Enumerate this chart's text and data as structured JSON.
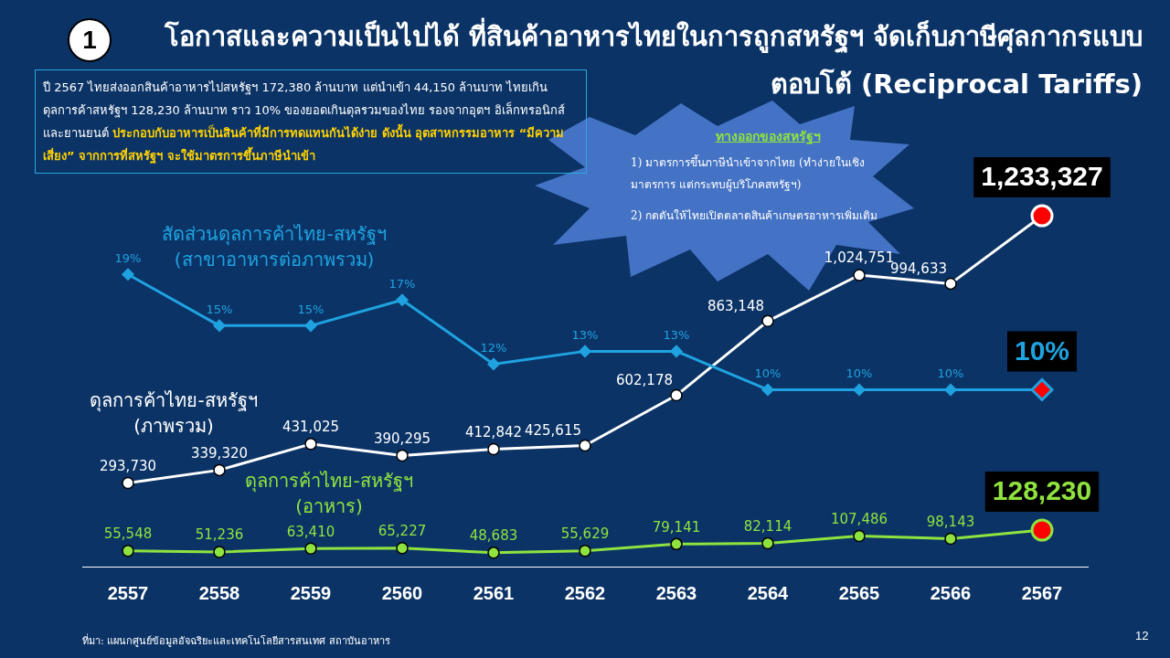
{
  "chart_data": {
    "type": "line",
    "title": "โอกาสและความเป็นไปได้ ที่สินค้าอาหารไทยในการถูกสหรัฐฯ จัดเก็บภาษีศุลกากรแบบตอบโต้ (Reciprocal Tariffs)",
    "categories": [
      "2557",
      "2558",
      "2559",
      "2560",
      "2561",
      "2562",
      "2563",
      "2564",
      "2565",
      "2566",
      "2567"
    ],
    "series": [
      {
        "name": "สัดส่วนดุลการค้าไทย-สหรัฐฯ\n(สาขาอาหารต่อภาพรวม)",
        "color": "#1fa3e0",
        "axis": "y2",
        "marker": "diamond",
        "values": [
          19,
          15,
          15,
          17,
          12,
          13,
          13,
          10,
          10,
          10,
          10
        ],
        "value_labels": [
          "19%",
          "15%",
          "15%",
          "17%",
          "12%",
          "13%",
          "13%",
          "10%",
          "10%",
          "10%",
          "10%"
        ]
      },
      {
        "name": "ดุลการค้าไทย-สหรัฐฯ\n(ภาพรวม)",
        "color": "#ffffff",
        "marker": "circle",
        "values": [
          293730,
          339320,
          431025,
          390295,
          412842,
          425615,
          602178,
          863148,
          1024751,
          994633,
          1233327
        ],
        "value_labels": [
          "293,730",
          "339,320",
          "431,025",
          "390,295",
          "412,842",
          "425,615",
          "602,178",
          "863,148",
          "1,024,751",
          "994,633",
          "1,233,327"
        ]
      },
      {
        "name": "ดุลการค้าไทย-สหรัฐฯ\n(อาหาร)",
        "color": "#8fe33f",
        "marker": "circle",
        "values": [
          55548,
          51236,
          63410,
          65227,
          48683,
          55629,
          79141,
          82114,
          107486,
          98143,
          128230
        ],
        "value_labels": [
          "55,548",
          "51,236",
          "63,410",
          "65,227",
          "48,683",
          "55,629",
          "79,141",
          "82,114",
          "107,486",
          "98,143",
          "128,230"
        ]
      }
    ],
    "tick_labels": "x",
    "grid": false,
    "legend": false,
    "annotations": [
      "1",
      "ปี 2567 ไทยส่งออกสินค้าอาหารไปสหรัฐฯ 172,380 ล้านบาท แต่นำเข้า 44,150 ล้านบาท ไทยเกินดุลการค้าสหรัฐฯ 128,230 ล้านบาท ราว 10% ของยอดเกินดุลรวมของไทย รองจากอุตฯ อิเล็กทรอนิกส์ และยานยนต์",
      "ประกอบกับอาหารเป็นสินค้าที่มีการทดแทนกันได้ง่าย ดังนั้น อุตสาหกรรมอาหาร “มีความเสี่ยง” จากการที่สหรัฐฯ จะใช้มาตรการขึ้นภาษีนำเข้า",
      "ทางออกของสหรัฐฯ",
      "1) มาตรการขึ้นภาษีนำเข้าจากไทย (ทำง่ายในเชิงมาตรการ แต่กระทบผู้บริโภคสหรัฐฯ)",
      "2) กดดันให้ไทยเปิดตลาดสินค้าเกษตรอาหารเพิ่มเติม",
      "ที่มา: แผนกศูนย์ข้อมูลอัจฉริยะและเทคโนโลยีสารสนเทศ สถาบันอาหาร",
      "12"
    ]
  }
}
